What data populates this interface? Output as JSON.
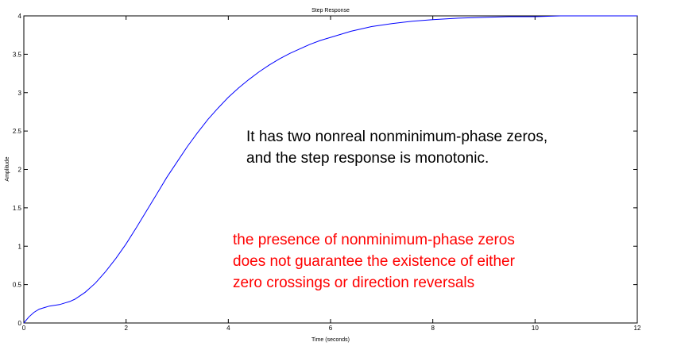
{
  "chart_data": {
    "type": "line",
    "title": "Step Response",
    "xlabel": "Time (seconds)",
    "ylabel": "Amplitude",
    "xlim": [
      0,
      12
    ],
    "ylim": [
      0,
      4
    ],
    "xticks": [
      0,
      2,
      4,
      6,
      8,
      10,
      12
    ],
    "yticks": [
      0,
      0.5,
      1,
      1.5,
      2,
      2.5,
      3,
      3.5,
      4
    ],
    "xtick_labels": [
      "0",
      "2",
      "4",
      "6",
      "8",
      "10",
      "12"
    ],
    "ytick_labels": [
      "0",
      "0.5",
      "1",
      "1.5",
      "2",
      "2.5",
      "3",
      "3.5",
      "4"
    ],
    "series": [
      {
        "name": "Step Response",
        "color": "#0000ff",
        "x": [
          0,
          0.1,
          0.2,
          0.3,
          0.4,
          0.5,
          0.6,
          0.7,
          0.8,
          0.9,
          1.0,
          1.2,
          1.4,
          1.6,
          1.8,
          2.0,
          2.2,
          2.4,
          2.6,
          2.8,
          3.0,
          3.2,
          3.4,
          3.6,
          3.8,
          4.0,
          4.2,
          4.4,
          4.6,
          4.8,
          5.0,
          5.2,
          5.4,
          5.6,
          5.8,
          6.0,
          6.4,
          6.8,
          7.2,
          7.6,
          8.0,
          8.5,
          9.0,
          9.5,
          10.0,
          10.5,
          11.0,
          11.5,
          12.0
        ],
        "y": [
          0,
          0.08,
          0.14,
          0.18,
          0.2,
          0.22,
          0.23,
          0.24,
          0.26,
          0.28,
          0.31,
          0.4,
          0.52,
          0.67,
          0.84,
          1.03,
          1.24,
          1.46,
          1.68,
          1.9,
          2.1,
          2.3,
          2.48,
          2.65,
          2.8,
          2.94,
          3.06,
          3.17,
          3.27,
          3.36,
          3.44,
          3.51,
          3.57,
          3.63,
          3.68,
          3.72,
          3.8,
          3.86,
          3.9,
          3.93,
          3.95,
          3.97,
          3.98,
          3.99,
          3.99,
          4.0,
          4.0,
          4.0,
          4.0
        ]
      }
    ],
    "grid": false
  },
  "annotations": {
    "black_line1": "It has two nonreal nonminimum-phase zeros,",
    "black_line2": "and the step response is monotonic.",
    "red_line1": "the presence of nonminimum-phase zeros",
    "red_line2": "does not guarantee the existence of either",
    "red_line3": "zero crossings or direction reversals",
    "black_color": "#000000",
    "red_color": "#ff0000"
  }
}
